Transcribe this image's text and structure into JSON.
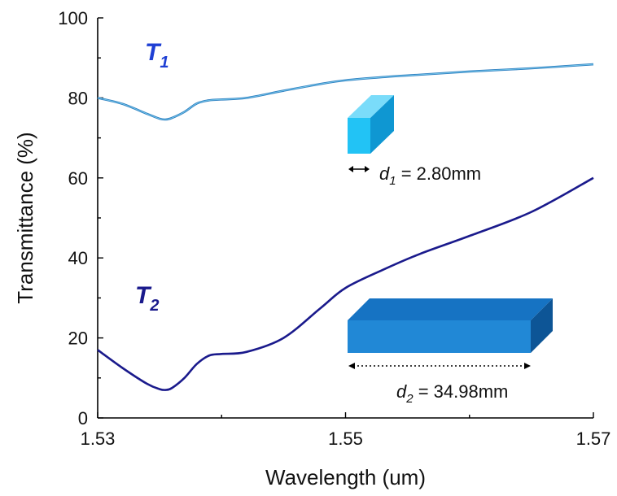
{
  "chart_data": {
    "type": "line",
    "xlabel": "Wavelength (um)",
    "ylabel": "Transmittance (%)",
    "xlim": [
      1.53,
      1.57
    ],
    "ylim": [
      0,
      100
    ],
    "xticks": [
      "1.53",
      "1.55",
      "1.57"
    ],
    "yticks": [
      "0",
      "20",
      "40",
      "60",
      "80",
      "100"
    ],
    "grid": false,
    "series": [
      {
        "name": "T1",
        "name_main": "T",
        "name_sub": "1",
        "color": "#2E7FC1",
        "x": [
          1.53,
          1.532,
          1.534,
          1.535,
          1.5355,
          1.536,
          1.537,
          1.538,
          1.539,
          1.54,
          1.542,
          1.545,
          1.548,
          1.55,
          1.553,
          1.556,
          1.56,
          1.565,
          1.57
        ],
        "y": [
          80.0,
          78.5,
          76.0,
          74.8,
          74.6,
          75.0,
          76.5,
          78.6,
          79.4,
          79.6,
          80.0,
          81.8,
          83.5,
          84.4,
          85.2,
          85.8,
          86.6,
          87.4,
          88.4
        ]
      },
      {
        "name": "T2",
        "name_main": "T",
        "name_sub": "2",
        "color": "#1A1A8C",
        "x": [
          1.53,
          1.532,
          1.534,
          1.535,
          1.5355,
          1.536,
          1.537,
          1.538,
          1.539,
          1.54,
          1.542,
          1.545,
          1.548,
          1.55,
          1.553,
          1.556,
          1.56,
          1.565,
          1.57
        ],
        "y": [
          17.0,
          12.5,
          8.5,
          7.2,
          7.0,
          7.5,
          10.0,
          13.5,
          15.6,
          16.0,
          16.5,
          20.0,
          27.5,
          32.5,
          37.0,
          41.0,
          45.5,
          51.5,
          60.0
        ]
      }
    ],
    "annotations": [
      {
        "var": "d",
        "sub": "1",
        "text": " = 2.80mm"
      },
      {
        "var": "d",
        "sub": "2",
        "text": " = 34.98mm"
      }
    ]
  }
}
